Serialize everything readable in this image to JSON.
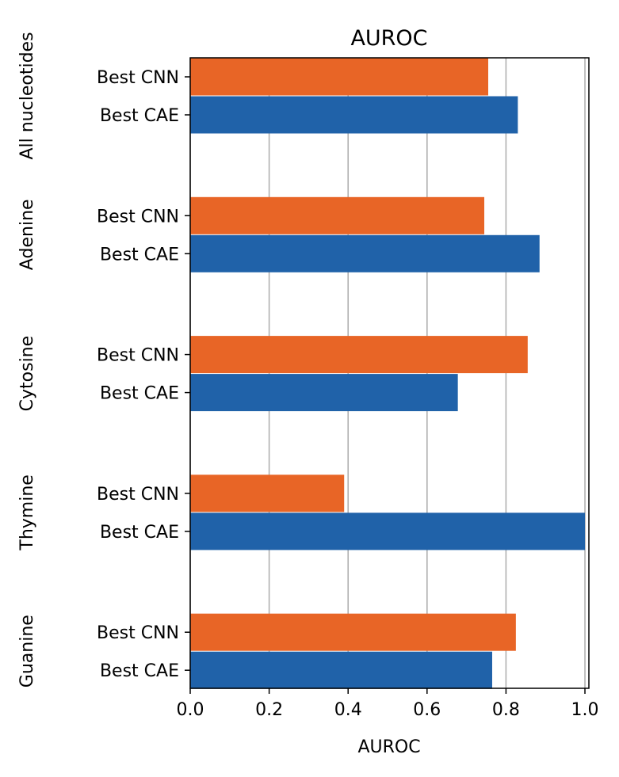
{
  "chart_data": {
    "type": "bar",
    "orientation": "horizontal",
    "title": "AUROC",
    "xlabel": "AUROC",
    "ylabel": "",
    "xlim": [
      0,
      1.01
    ],
    "xticks": [
      "0.0",
      "0.2",
      "0.4",
      "0.6",
      "0.8",
      "1.0"
    ],
    "grid": "vertical",
    "series_colors": {
      "Best CNN": "#E86526",
      "Best CAE": "#2062A9"
    },
    "groups": [
      {
        "name": "All nucleotides",
        "bars": [
          {
            "label": "Best CNN",
            "value": 0.755
          },
          {
            "label": "Best CAE",
            "value": 0.83
          }
        ]
      },
      {
        "name": "Adenine",
        "bars": [
          {
            "label": "Best CNN",
            "value": 0.745
          },
          {
            "label": "Best CAE",
            "value": 0.885
          }
        ]
      },
      {
        "name": "Cytosine",
        "bars": [
          {
            "label": "Best CNN",
            "value": 0.855
          },
          {
            "label": "Best CAE",
            "value": 0.678
          }
        ]
      },
      {
        "name": "Thymine",
        "bars": [
          {
            "label": "Best CNN",
            "value": 0.39
          },
          {
            "label": "Best CAE",
            "value": 1.0
          }
        ]
      },
      {
        "name": "Guanine",
        "bars": [
          {
            "label": "Best CNN",
            "value": 0.825
          },
          {
            "label": "Best CAE",
            "value": 0.765
          }
        ]
      }
    ]
  }
}
